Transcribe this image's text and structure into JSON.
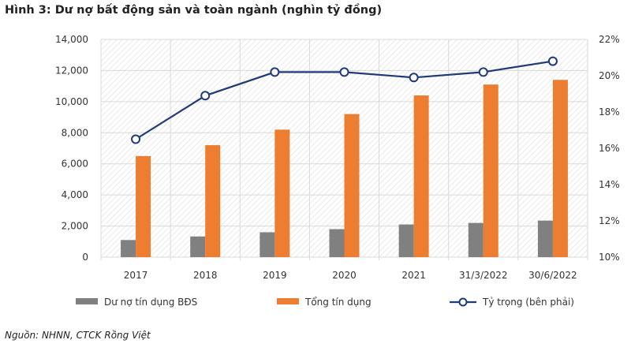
{
  "title": "Hình 3: Dư nợ bất động sản và toàn ngành (nghìn tỷ đồng)",
  "source": "Nguồn: NHNN, CTCK Rồng Việt",
  "chart_data": {
    "type": "bar",
    "title": "Hình 3: Dư nợ bất động sản và toàn ngành (nghìn tỷ đồng)",
    "categories": [
      "2017",
      "2018",
      "2019",
      "2020",
      "2021",
      "31/3/2022",
      "30/6/2022"
    ],
    "series": [
      {
        "name": "Dư nợ tín dụng BĐS",
        "type": "bar",
        "axis": "left",
        "color": "#808080",
        "values": [
          1100,
          1330,
          1600,
          1800,
          2100,
          2200,
          2350
        ]
      },
      {
        "name": "Tổng tín dụng",
        "type": "bar",
        "axis": "left",
        "color": "#ED7D31",
        "values": [
          6500,
          7200,
          8200,
          9200,
          10400,
          11100,
          11400
        ]
      },
      {
        "name": "Tỷ trọng (bên phải)",
        "type": "line",
        "axis": "right",
        "color": "#1F3A7A",
        "values": [
          16.5,
          18.9,
          20.2,
          20.2,
          19.9,
          20.2,
          20.8
        ]
      }
    ],
    "ylim": [
      0,
      14000
    ],
    "yticks": [
      "0",
      "2,000",
      "4,000",
      "6,000",
      "8,000",
      "10,000",
      "12,000",
      "14,000"
    ],
    "y2lim": [
      10,
      22
    ],
    "y2ticks": [
      "10%",
      "12%",
      "14%",
      "16%",
      "18%",
      "20%",
      "22%"
    ],
    "grid": true,
    "legend_position": "bottom"
  }
}
